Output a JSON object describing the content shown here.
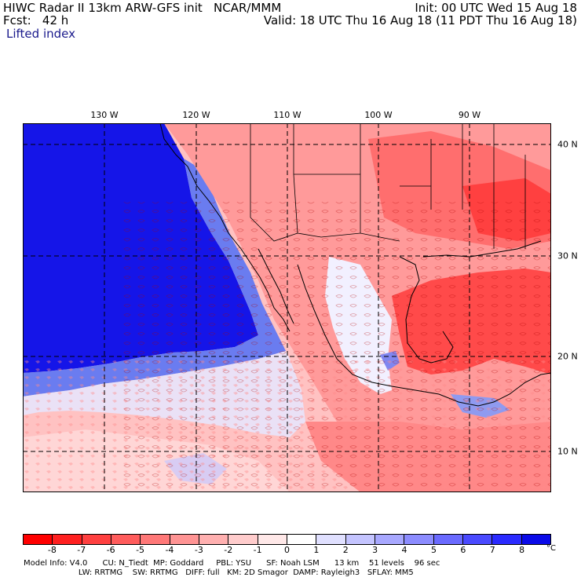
{
  "header": {
    "left_line1": "HIWC Radar II 13km ARW-GFS init   NCAR/MMM",
    "left_line2": "Fcst:   42 h",
    "right_line1": "Init: 00 UTC Wed 15 Aug 18",
    "right_line2": "Valid: 18 UTC Thu 16 Aug 18 (11 PDT Thu 16 Aug 18)",
    "field_name": "Lifted index"
  },
  "map": {
    "lon_labels": [
      "130 W",
      "120 W",
      "110 W",
      "100 W",
      "90 W"
    ],
    "lat_labels": [
      "40 N",
      "30 N",
      "20 N",
      "10 N"
    ],
    "grid_colors": {
      "ocean_cold": "#1515e8",
      "stable": "#5a6ae8",
      "neutral": "#ffffff",
      "unstable": "#ff5c5c"
    }
  },
  "colorbar": {
    "ticks": [
      "-8",
      "-7",
      "-6",
      "-5",
      "-4",
      "-3",
      "-2",
      "-1",
      "0",
      "1",
      "2",
      "3",
      "4",
      "5",
      "6",
      "7",
      "8"
    ],
    "unit": "°C",
    "colors": [
      "#ff0000",
      "#ff2020",
      "#ff4040",
      "#ff5c5c",
      "#ff7878",
      "#ff9494",
      "#ffb0b0",
      "#ffcccc",
      "#ffe8e8",
      "#ffffff",
      "#e0e0ff",
      "#c4c4ff",
      "#a8a8ff",
      "#8c8cff",
      "#6a6aff",
      "#4a4aff",
      "#2a2aff",
      "#0a0ae8"
    ]
  },
  "model_info": {
    "line1": "Model Info: V4.0      CU: N_Tiedt  MP: Goddard     PBL: YSU      SF: Noah LSM      13 km    51 levels    96 sec",
    "line2": "                      LW: RRTMG    SW: RRTMG   DIFF: full   KM: 2D Smagor  DAMP: Rayleigh3   SFLAY: MM5"
  }
}
